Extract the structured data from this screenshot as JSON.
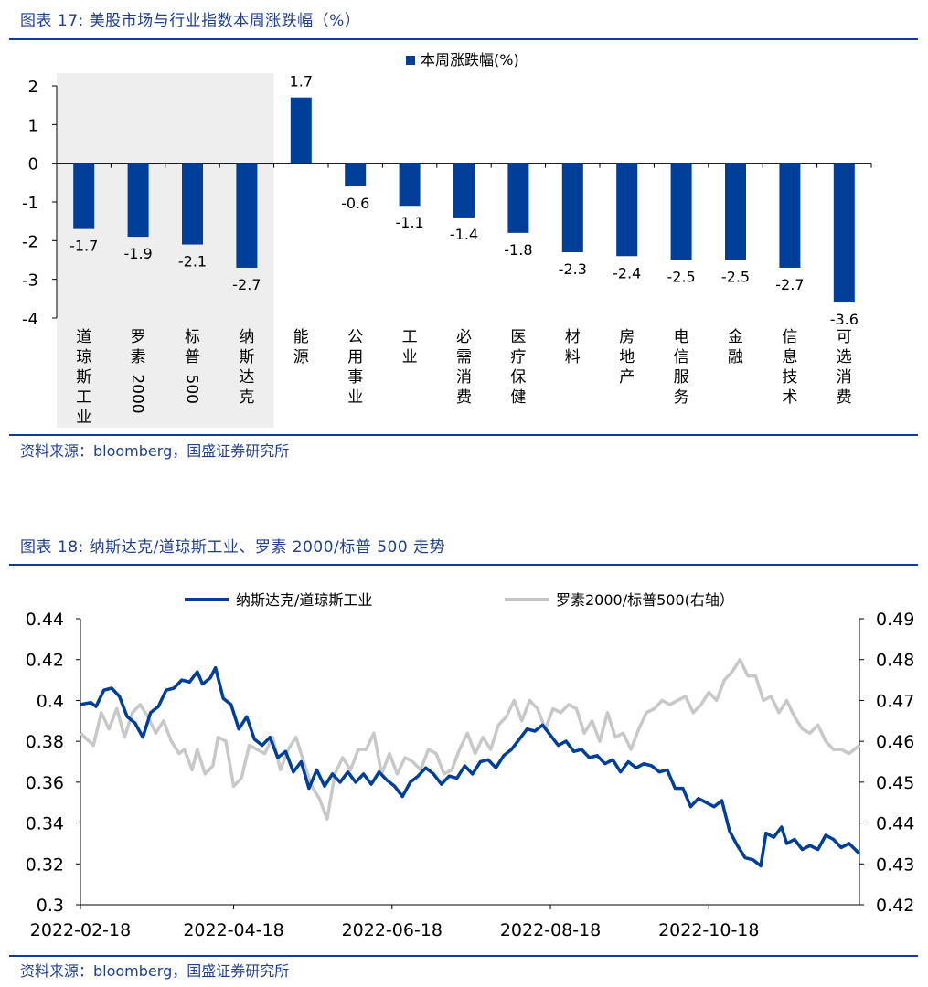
{
  "charts": [
    {
      "title": "图表 17:  美股市场与行业指数本周涨跌幅（%）",
      "source": "资料来源：bloomberg，国盛证券研究所"
    },
    {
      "title": "图表 18:  纳斯达克/道琼斯工业、罗素 2000/标普 500 走势",
      "source": "资料来源：bloomberg，国盛证券研究所"
    }
  ],
  "chart_data": [
    {
      "type": "bar",
      "title": "美股市场与行业指数本周涨跌幅（%）",
      "series_name": "本周涨跌幅(%)",
      "bar_color": "#003f99",
      "highlight_color": "#eeeeee",
      "highlight_count": 4,
      "categories": [
        "道琼斯工业",
        "罗素2000",
        "标普500",
        "纳斯达克",
        "能源",
        "公用事业",
        "工业",
        "必需消费",
        "医疗保健",
        "材料",
        "房地产",
        "电信服务",
        "金融",
        "信息技术",
        "可选消费"
      ],
      "values": [
        -1.7,
        -1.9,
        -2.1,
        -2.7,
        1.7,
        -0.6,
        -1.1,
        -1.4,
        -1.8,
        -2.3,
        -2.4,
        -2.5,
        -2.5,
        -2.7,
        -3.6
      ],
      "labels": [
        "-1.7",
        "-1.9",
        "-2.1",
        "-2.7",
        "1.7",
        "-0.6",
        "-1.1",
        "-1.4",
        "-1.8",
        "-2.3",
        "-2.4",
        "-2.5",
        "-2.5",
        "-2.7",
        "-3.6"
      ],
      "yticks": [
        "2",
        "1",
        "0",
        "-1",
        "-2",
        "-3",
        "-4"
      ],
      "ylim": [
        -4,
        2
      ]
    },
    {
      "type": "line",
      "title": "纳斯达克/道琼斯工业、罗素 2000/标普 500 走势",
      "xticks": [
        "2022-02-18",
        "2022-04-18",
        "2022-06-18",
        "2022-08-18",
        "2022-10-18"
      ],
      "xlim_days": [
        0,
        300
      ],
      "xtick_days": [
        0,
        59,
        120,
        181,
        242
      ],
      "yticks_left": [
        "0.44",
        "0.42",
        "0.4",
        "0.38",
        "0.36",
        "0.34",
        "0.32",
        "0.3"
      ],
      "yticks_right": [
        "0.49",
        "0.48",
        "0.47",
        "0.46",
        "0.45",
        "0.44",
        "0.43",
        "0.42"
      ],
      "ylim_left": [
        0.3,
        0.44
      ],
      "ylim_right": [
        0.42,
        0.49
      ],
      "series": [
        {
          "name": "纳斯达克/道琼斯工业",
          "axis": "left",
          "color": "#003f99",
          "points": [
            [
              0,
              0.398
            ],
            [
              4,
              0.399
            ],
            [
              6,
              0.397
            ],
            [
              9,
              0.405
            ],
            [
              12,
              0.406
            ],
            [
              15,
              0.402
            ],
            [
              18,
              0.392
            ],
            [
              21,
              0.389
            ],
            [
              24,
              0.382
            ],
            [
              27,
              0.394
            ],
            [
              30,
              0.397
            ],
            [
              33,
              0.405
            ],
            [
              36,
              0.406
            ],
            [
              39,
              0.41
            ],
            [
              42,
              0.409
            ],
            [
              45,
              0.414
            ],
            [
              47,
              0.408
            ],
            [
              50,
              0.411
            ],
            [
              52,
              0.416
            ],
            [
              55,
              0.401
            ],
            [
              58,
              0.398
            ],
            [
              61,
              0.386
            ],
            [
              64,
              0.392
            ],
            [
              67,
              0.381
            ],
            [
              70,
              0.378
            ],
            [
              73,
              0.382
            ],
            [
              76,
              0.372
            ],
            [
              79,
              0.375
            ],
            [
              82,
              0.365
            ],
            [
              85,
              0.37
            ],
            [
              88,
              0.357
            ],
            [
              91,
              0.366
            ],
            [
              94,
              0.358
            ],
            [
              97,
              0.364
            ],
            [
              100,
              0.36
            ],
            [
              103,
              0.365
            ],
            [
              106,
              0.36
            ],
            [
              109,
              0.364
            ],
            [
              112,
              0.359
            ],
            [
              115,
              0.365
            ],
            [
              118,
              0.361
            ],
            [
              121,
              0.358
            ],
            [
              124,
              0.353
            ],
            [
              127,
              0.36
            ],
            [
              130,
              0.363
            ],
            [
              133,
              0.367
            ],
            [
              136,
              0.364
            ],
            [
              139,
              0.359
            ],
            [
              142,
              0.363
            ],
            [
              145,
              0.362
            ],
            [
              148,
              0.368
            ],
            [
              151,
              0.364
            ],
            [
              154,
              0.37
            ],
            [
              157,
              0.371
            ],
            [
              160,
              0.367
            ],
            [
              163,
              0.373
            ],
            [
              166,
              0.376
            ],
            [
              169,
              0.381
            ],
            [
              172,
              0.386
            ],
            [
              175,
              0.385
            ],
            [
              178,
              0.388
            ],
            [
              181,
              0.383
            ],
            [
              184,
              0.378
            ],
            [
              187,
              0.38
            ],
            [
              190,
              0.375
            ],
            [
              193,
              0.376
            ],
            [
              196,
              0.372
            ],
            [
              199,
              0.373
            ],
            [
              202,
              0.369
            ],
            [
              205,
              0.371
            ],
            [
              208,
              0.365
            ],
            [
              211,
              0.37
            ],
            [
              214,
              0.367
            ],
            [
              217,
              0.369
            ],
            [
              220,
              0.368
            ],
            [
              223,
              0.365
            ],
            [
              226,
              0.366
            ],
            [
              229,
              0.357
            ],
            [
              232,
              0.357
            ],
            [
              235,
              0.348
            ],
            [
              238,
              0.352
            ],
            [
              241,
              0.35
            ],
            [
              244,
              0.348
            ],
            [
              247,
              0.351
            ],
            [
              250,
              0.336
            ],
            [
              253,
              0.329
            ],
            [
              256,
              0.323
            ],
            [
              259,
              0.322
            ],
            [
              262,
              0.319
            ],
            [
              264,
              0.335
            ],
            [
              267,
              0.333
            ],
            [
              270,
              0.338
            ],
            [
              272,
              0.33
            ],
            [
              275,
              0.332
            ],
            [
              278,
              0.327
            ],
            [
              281,
              0.329
            ],
            [
              284,
              0.327
            ],
            [
              287,
              0.334
            ],
            [
              290,
              0.332
            ],
            [
              293,
              0.328
            ],
            [
              296,
              0.33
            ],
            [
              300,
              0.325
            ]
          ]
        },
        {
          "name": "罗素2000/标普500(右轴）",
          "axis": "right",
          "color": "#c8c8c8",
          "points": [
            [
              0,
              0.462
            ],
            [
              5,
              0.459
            ],
            [
              8,
              0.467
            ],
            [
              11,
              0.463
            ],
            [
              14,
              0.468
            ],
            [
              17,
              0.461
            ],
            [
              20,
              0.467
            ],
            [
              23,
              0.469
            ],
            [
              26,
              0.466
            ],
            [
              29,
              0.462
            ],
            [
              32,
              0.465
            ],
            [
              35,
              0.46
            ],
            [
              38,
              0.457
            ],
            [
              40,
              0.458
            ],
            [
              43,
              0.453
            ],
            [
              45,
              0.458
            ],
            [
              48,
              0.452
            ],
            [
              51,
              0.454
            ],
            [
              53,
              0.461
            ],
            [
              56,
              0.46
            ],
            [
              59,
              0.449
            ],
            [
              62,
              0.451
            ],
            [
              65,
              0.459
            ],
            [
              68,
              0.458
            ],
            [
              71,
              0.457
            ],
            [
              74,
              0.461
            ],
            [
              77,
              0.453
            ],
            [
              80,
              0.458
            ],
            [
              83,
              0.461
            ],
            [
              86,
              0.455
            ],
            [
              89,
              0.449
            ],
            [
              92,
              0.446
            ],
            [
              95,
              0.441
            ],
            [
              98,
              0.452
            ],
            [
              101,
              0.456
            ],
            [
              104,
              0.453
            ],
            [
              107,
              0.458
            ],
            [
              110,
              0.458
            ],
            [
              113,
              0.462
            ],
            [
              116,
              0.452
            ],
            [
              119,
              0.457
            ],
            [
              122,
              0.452
            ],
            [
              125,
              0.456
            ],
            [
              128,
              0.455
            ],
            [
              131,
              0.453
            ],
            [
              134,
              0.458
            ],
            [
              137,
              0.457
            ],
            [
              140,
              0.452
            ],
            [
              143,
              0.453
            ],
            [
              146,
              0.458
            ],
            [
              149,
              0.462
            ],
            [
              152,
              0.457
            ],
            [
              155,
              0.461
            ],
            [
              158,
              0.458
            ],
            [
              161,
              0.464
            ],
            [
              164,
              0.466
            ],
            [
              167,
              0.47
            ],
            [
              170,
              0.465
            ],
            [
              173,
              0.47
            ],
            [
              176,
              0.468
            ],
            [
              179,
              0.463
            ],
            [
              182,
              0.468
            ],
            [
              185,
              0.467
            ],
            [
              188,
              0.469
            ],
            [
              191,
              0.468
            ],
            [
              194,
              0.462
            ],
            [
              197,
              0.465
            ],
            [
              200,
              0.46
            ],
            [
              203,
              0.467
            ],
            [
              206,
              0.461
            ],
            [
              209,
              0.462
            ],
            [
              212,
              0.458
            ],
            [
              215,
              0.463
            ],
            [
              218,
              0.467
            ],
            [
              221,
              0.468
            ],
            [
              224,
              0.47
            ],
            [
              227,
              0.469
            ],
            [
              230,
              0.47
            ],
            [
              233,
              0.471
            ],
            [
              236,
              0.467
            ],
            [
              239,
              0.469
            ],
            [
              242,
              0.472
            ],
            [
              245,
              0.47
            ],
            [
              248,
              0.475
            ],
            [
              251,
              0.477
            ],
            [
              254,
              0.48
            ],
            [
              257,
              0.476
            ],
            [
              260,
              0.476
            ],
            [
              263,
              0.47
            ],
            [
              266,
              0.471
            ],
            [
              269,
              0.467
            ],
            [
              272,
              0.47
            ],
            [
              275,
              0.466
            ],
            [
              278,
              0.463
            ],
            [
              281,
              0.462
            ],
            [
              284,
              0.464
            ],
            [
              287,
              0.46
            ],
            [
              290,
              0.458
            ],
            [
              293,
              0.458
            ],
            [
              296,
              0.457
            ],
            [
              300,
              0.459
            ]
          ]
        }
      ]
    }
  ]
}
